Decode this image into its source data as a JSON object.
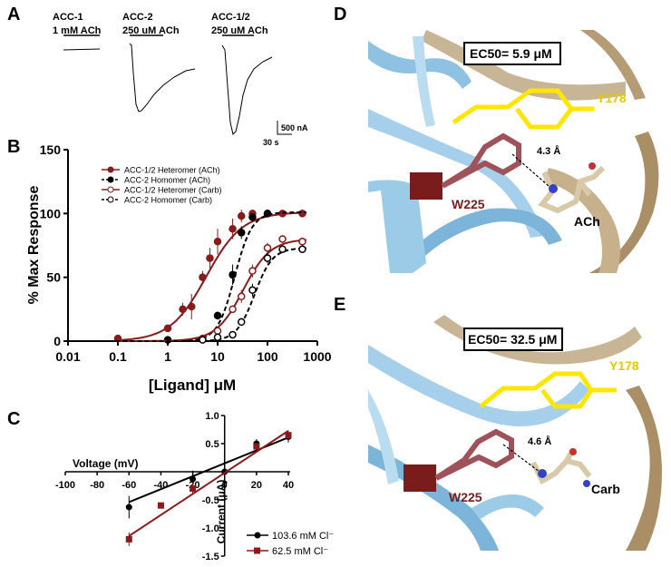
{
  "panels": {
    "A": "A",
    "B": "B",
    "C": "C",
    "D": "D",
    "E": "E"
  },
  "panelA": {
    "traces": [
      {
        "name": "ACC-1",
        "conc": "1 mM ACh"
      },
      {
        "name": "ACC-2",
        "conc": "250 uM ACh"
      },
      {
        "name": "ACC-1/2",
        "conc": "250 uM ACh"
      }
    ],
    "scale_current": "500 nA",
    "scale_time": "30 s"
  },
  "panelD": {
    "ec50": "EC50= 5.9 μM",
    "distance": "4.3 Å",
    "res_y": "Y178",
    "res_w": "W225",
    "ligand": "ACh"
  },
  "panelE": {
    "ec50": "EC50= 32.5 μM",
    "distance": "4.6 Å",
    "res_y": "Y178",
    "res_w": "W225",
    "ligand": "Carb"
  },
  "chart_data": [
    {
      "type": "scatter",
      "title": "",
      "xlabel": "[Ligand] μM",
      "ylabel": "% Max Response",
      "xscale": "log",
      "xlim": [
        0.01,
        1000
      ],
      "ylim": [
        0,
        150
      ],
      "xticks": [
        "0.01",
        "0.1",
        "1",
        "10",
        "100",
        "1000"
      ],
      "yticks": [
        "0",
        "50",
        "100",
        "150"
      ],
      "legend_position": "top-left",
      "series": [
        {
          "name": "ACC-1/2 Heteromer (ACh)",
          "color": "#8b1a1a",
          "style": "solid",
          "marker": "filled",
          "x": [
            0.1,
            1,
            2,
            3,
            5,
            7,
            10,
            20,
            30,
            50,
            100,
            200,
            500
          ],
          "y": [
            2,
            10,
            25,
            27,
            50,
            65,
            78,
            88,
            98,
            100,
            100,
            100,
            100
          ],
          "err": [
            0,
            2,
            5,
            10,
            5,
            8,
            10,
            8,
            5,
            2,
            2,
            2,
            2
          ],
          "fit": {
            "ec50": 5.9,
            "top": 101,
            "hill": 1.2
          }
        },
        {
          "name": "ACC-2 Homomer (ACh)",
          "color": "#000000",
          "style": "dashed",
          "marker": "filled",
          "x": [
            1,
            10,
            20,
            30,
            50,
            100
          ],
          "y": [
            1,
            20,
            52,
            85,
            97,
            100
          ],
          "err": [
            1,
            3,
            8,
            5,
            3,
            2
          ],
          "fit": {
            "ec50": 22,
            "top": 101,
            "hill": 2.5
          }
        },
        {
          "name": "ACC-1/2 Heteromer (Carb)",
          "color": "#8b1a1a",
          "style": "solid",
          "marker": "open",
          "x": [
            5,
            10,
            20,
            30,
            50,
            100,
            200,
            500
          ],
          "y": [
            2,
            8,
            25,
            35,
            55,
            73,
            80,
            78
          ],
          "err": [
            1,
            2,
            3,
            5,
            5,
            4,
            3,
            3
          ],
          "fit": {
            "ec50": 32.5,
            "top": 80,
            "hill": 1.6
          }
        },
        {
          "name": "ACC-2 Homomer (Carb)",
          "color": "#000000",
          "style": "dashed",
          "marker": "open",
          "x": [
            5,
            10,
            20,
            30,
            50,
            100,
            200,
            500
          ],
          "y": [
            1,
            3,
            5,
            15,
            40,
            65,
            72,
            72
          ],
          "err": [
            1,
            1,
            2,
            3,
            5,
            4,
            3,
            3
          ],
          "fit": {
            "ec50": 55,
            "top": 73,
            "hill": 2.4
          }
        }
      ]
    },
    {
      "type": "scatter",
      "title": "",
      "xlabel": "Voltage (mV)",
      "ylabel": "Current (μA)",
      "xlim": [
        -100,
        40
      ],
      "ylim": [
        -1.5,
        1.0
      ],
      "xticks": [
        "-100",
        "-80",
        "-60",
        "-40",
        "-20",
        "0",
        "20",
        "40"
      ],
      "yticks": [
        "1.0",
        "0.5",
        "-0.5",
        "-1.0",
        "-1.5"
      ],
      "legend_position": "bottom-right",
      "series": [
        {
          "name": "103.6 mM Cl⁻",
          "color": "#000000",
          "marker": "circle",
          "x": [
            -60,
            -20,
            0,
            20,
            40
          ],
          "y": [
            -0.63,
            -0.13,
            0.0,
            0.5,
            0.62
          ],
          "err": [
            0.2,
            0.15,
            0.05,
            0.08,
            0.1
          ],
          "fit": {
            "slope": 0.0115,
            "intercept": 0.15
          }
        },
        {
          "name": "62.5 mM Cl⁻",
          "color": "#8b1a1a",
          "marker": "square",
          "x": [
            -60,
            -40,
            -20,
            20,
            40
          ],
          "y": [
            -1.2,
            -0.6,
            -0.3,
            0.45,
            0.65
          ],
          "err": [
            0.12,
            0.05,
            0.1,
            0.05,
            0.08
          ],
          "fit": {
            "slope": 0.0187,
            "intercept": -0.02
          }
        }
      ]
    }
  ]
}
